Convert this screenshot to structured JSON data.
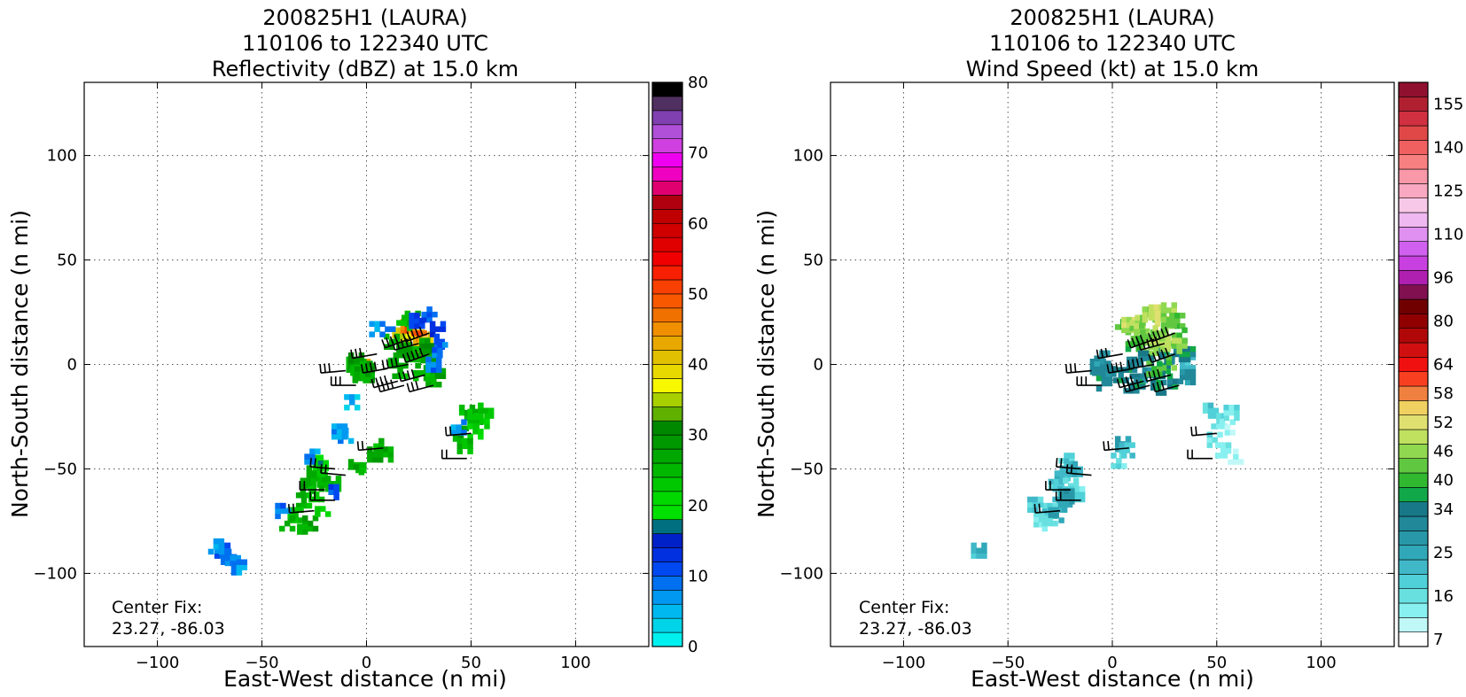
{
  "chart_data": [
    {
      "type": "heatmap",
      "title_lines": [
        "200825H1 (LAURA)",
        "110106 to 122340 UTC",
        "Reflectivity (dBZ) at 15.0 km"
      ],
      "xlabel": "East-West distance (n mi)",
      "ylabel": "North-South distance (n mi)",
      "xlim": [
        -135,
        135
      ],
      "ylim": [
        -135,
        135
      ],
      "xticks": [
        -100,
        -50,
        0,
        50,
        100
      ],
      "yticks": [
        -100,
        -50,
        0,
        50,
        100
      ],
      "xtick_labels": [
        "−100",
        "−50",
        "0",
        "50",
        "100"
      ],
      "ytick_labels": [
        "−100",
        "−50",
        "0",
        "50",
        "100"
      ],
      "grid": true,
      "annotation_lines": [
        "Center Fix:",
        "23.27, -86.03"
      ],
      "colorbar": {
        "min": 0,
        "max": 80,
        "ticks": [
          0,
          10,
          20,
          30,
          40,
          50,
          60,
          70,
          80
        ],
        "tick_labels": [
          "0",
          "10",
          "20",
          "30",
          "40",
          "50",
          "60",
          "70",
          "80"
        ],
        "colors": [
          "#00f0f0",
          "#00d4e8",
          "#00b8f0",
          "#0098f0",
          "#0070f0",
          "#0048f0",
          "#0030e0",
          "#0020c8",
          "#007080",
          "#00e000",
          "#00d800",
          "#00c800",
          "#00b800",
          "#00a800",
          "#009800",
          "#008800",
          "#60b000",
          "#a8d000",
          "#f8f800",
          "#e8d800",
          "#e0c000",
          "#e8a800",
          "#f09000",
          "#f07000",
          "#f85800",
          "#f84000",
          "#f82000",
          "#f00000",
          "#e00000",
          "#d00000",
          "#c00000",
          "#b00010",
          "#e00070",
          "#f000c0",
          "#f000f0",
          "#d040e0",
          "#b050d8",
          "#8040b0",
          "#503060",
          "#000000"
        ]
      },
      "cells": [
        [
          5,
          17,
          2
        ],
        [
          -4,
          -48,
          12
        ],
        [
          -3,
          -1,
          13
        ],
        [
          -2,
          -1,
          20
        ],
        [
          -1,
          -2,
          14
        ],
        [
          0,
          -3,
          13
        ],
        [
          0,
          -5,
          16
        ],
        [
          -2,
          -3,
          14
        ],
        [
          -1,
          -4,
          13
        ],
        [
          -4,
          -1,
          12
        ],
        [
          -6,
          0,
          12
        ],
        [
          -3,
          -5,
          13
        ],
        [
          -5,
          2,
          14
        ],
        [
          -4,
          -4,
          12
        ],
        [
          -2,
          -2,
          13
        ],
        [
          14,
          2,
          12
        ],
        [
          16,
          14,
          20
        ],
        [
          20,
          18,
          22
        ],
        [
          22,
          16,
          24
        ],
        [
          24,
          13,
          20
        ],
        [
          20,
          11,
          18
        ],
        [
          26,
          8,
          20
        ],
        [
          25,
          15,
          24
        ],
        [
          28,
          12,
          20
        ],
        [
          30,
          5,
          14
        ],
        [
          27,
          2,
          13
        ],
        [
          22,
          5,
          12
        ],
        [
          18,
          7,
          14
        ],
        [
          12,
          11,
          13
        ],
        [
          16,
          -3,
          12
        ],
        [
          26,
          -4,
          12
        ],
        [
          32,
          -7,
          12
        ],
        [
          34,
          -3,
          13
        ],
        [
          29,
          9,
          14
        ],
        [
          22,
          22,
          13
        ],
        [
          18,
          20,
          12
        ],
        [
          10,
          17,
          4
        ],
        [
          24,
          21,
          5
        ],
        [
          30,
          24,
          5
        ],
        [
          34,
          17,
          6
        ],
        [
          36,
          11,
          5
        ],
        [
          35,
          7,
          4
        ],
        [
          32,
          0,
          4
        ],
        [
          48,
          -23,
          12
        ],
        [
          50,
          -28,
          12
        ],
        [
          52,
          -25,
          12
        ],
        [
          45,
          -33,
          13
        ],
        [
          55,
          -27,
          11
        ],
        [
          57,
          -22,
          12
        ],
        [
          52,
          -32,
          10
        ],
        [
          47,
          -39,
          12
        ],
        [
          44,
          -30,
          3
        ],
        [
          7,
          -39,
          12
        ],
        [
          9,
          -43,
          13
        ],
        [
          4,
          -43,
          13
        ],
        [
          -5,
          -49,
          13
        ],
        [
          -22,
          -47,
          9
        ],
        [
          -25,
          -52,
          12
        ],
        [
          -20,
          -55,
          12
        ],
        [
          -28,
          -58,
          13
        ],
        [
          -24,
          -62,
          12
        ],
        [
          -30,
          -65,
          12
        ],
        [
          -34,
          -72,
          12
        ],
        [
          -27,
          -76,
          13
        ],
        [
          -38,
          -76,
          12
        ],
        [
          -32,
          -80,
          13
        ],
        [
          -16,
          -57,
          12
        ],
        [
          -21,
          -69,
          11
        ],
        [
          -66,
          -92,
          4
        ],
        [
          -69,
          -89,
          4
        ],
        [
          -64,
          -95,
          3
        ],
        [
          -72,
          -87,
          3
        ],
        [
          -61,
          -97,
          3
        ],
        [
          -10,
          -34,
          3
        ],
        [
          -26,
          -44,
          3
        ],
        [
          -40,
          -70,
          4
        ],
        [
          -17,
          -61,
          5
        ],
        [
          -7,
          -18,
          2
        ],
        [
          -13,
          -32,
          3
        ]
      ],
      "barbs": [
        [
          -10,
          -3,
          265,
          30
        ],
        [
          -5,
          -10,
          270,
          30
        ],
        [
          5,
          5,
          260,
          30
        ],
        [
          10,
          -2,
          260,
          35
        ],
        [
          15,
          -8,
          255,
          35
        ],
        [
          20,
          0,
          260,
          40
        ],
        [
          25,
          10,
          255,
          45
        ],
        [
          30,
          15,
          250,
          45
        ],
        [
          20,
          12,
          250,
          40
        ],
        [
          28,
          -5,
          255,
          35
        ],
        [
          -15,
          -50,
          275,
          20
        ],
        [
          -10,
          -53,
          275,
          20
        ],
        [
          -20,
          -60,
          270,
          20
        ],
        [
          -15,
          -65,
          270,
          20
        ],
        [
          -25,
          -70,
          265,
          20
        ],
        [
          50,
          -33,
          265,
          15
        ],
        [
          48,
          -45,
          270,
          15
        ],
        [
          8,
          -40,
          265,
          15
        ],
        [
          30,
          5,
          250,
          45
        ],
        [
          18,
          -10,
          255,
          35
        ],
        [
          32,
          -10,
          255,
          30
        ]
      ]
    },
    {
      "type": "heatmap",
      "title_lines": [
        "200825H1 (LAURA)",
        "110106 to 122340 UTC",
        "Wind Speed (kt) at 15.0 km"
      ],
      "xlabel": "East-West distance (n mi)",
      "ylabel": "North-South distance (n mi)",
      "xlim": [
        -135,
        135
      ],
      "ylim": [
        -135,
        135
      ],
      "xticks": [
        -100,
        -50,
        0,
        50,
        100
      ],
      "yticks": [
        -100,
        -50,
        0,
        50,
        100
      ],
      "xtick_labels": [
        "−100",
        "−50",
        "0",
        "50",
        "100"
      ],
      "ytick_labels": [
        "−100",
        "−50",
        "0",
        "50",
        "100"
      ],
      "grid": true,
      "annotation_lines": [
        "Center Fix:",
        "23.27, -86.03"
      ],
      "colorbar": {
        "ticks": [
          7,
          16,
          25,
          34,
          40,
          46,
          52,
          58,
          64,
          80,
          96,
          110,
          125,
          140,
          155
        ],
        "tick_labels": [
          "7",
          "16",
          "25",
          "34",
          "40",
          "46",
          "52",
          "58",
          "64",
          "80",
          "96",
          "110",
          "125",
          "140",
          "155"
        ],
        "tick_slots": [
          0,
          3,
          6,
          9,
          11,
          13,
          15,
          17,
          19,
          22,
          25,
          28,
          31,
          34,
          37
        ],
        "colors": [
          "#ffffff",
          "#c0f8f8",
          "#88f0f0",
          "#68e0e0",
          "#50d0d8",
          "#40b8c8",
          "#30a8b8",
          "#2898a8",
          "#208898",
          "#187888",
          "#10a848",
          "#30b830",
          "#60c840",
          "#90d850",
          "#c0e060",
          "#e0e070",
          "#f0d060",
          "#f08040",
          "#f84020",
          "#f01010",
          "#d01010",
          "#b00808",
          "#900000",
          "#700000",
          "#801050",
          "#b020b0",
          "#c840e0",
          "#d060f0",
          "#e090f0",
          "#f0b8f0",
          "#f8c8e8",
          "#f8a8c0",
          "#f898a8",
          "#f88080",
          "#f06060",
          "#e04848",
          "#d03040",
          "#b02030",
          "#901030"
        ]
      },
      "cells": [
        [
          5,
          18,
          12
        ],
        [
          8,
          19,
          14
        ],
        [
          12,
          20,
          13
        ],
        [
          14,
          16,
          13
        ],
        [
          17,
          13,
          12
        ],
        [
          18,
          24,
          13
        ],
        [
          21,
          25,
          14
        ],
        [
          24,
          22,
          15
        ],
        [
          27,
          26,
          13
        ],
        [
          31,
          21,
          12
        ],
        [
          32,
          14,
          11
        ],
        [
          26,
          10,
          12
        ],
        [
          23,
          15,
          13
        ],
        [
          21,
          8,
          13
        ],
        [
          16,
          6,
          12
        ],
        [
          10,
          10,
          11
        ],
        [
          8,
          0,
          9
        ],
        [
          16,
          3,
          9
        ],
        [
          24,
          -3,
          9
        ],
        [
          30,
          -8,
          9
        ],
        [
          12,
          -8,
          9
        ],
        [
          18,
          -5,
          8
        ],
        [
          26,
          4,
          9
        ],
        [
          33,
          5,
          8
        ],
        [
          36,
          1,
          5
        ],
        [
          36,
          5,
          9
        ],
        [
          4,
          -5,
          9
        ],
        [
          9,
          -10,
          8
        ],
        [
          22,
          -11,
          9
        ],
        [
          36,
          -6,
          7
        ],
        [
          27,
          1,
          12
        ],
        [
          -7,
          -1,
          8
        ],
        [
          -6,
          -4,
          8
        ],
        [
          -5,
          3,
          7
        ],
        [
          -4,
          -9,
          9
        ],
        [
          -2,
          -2,
          8
        ],
        [
          47,
          -22,
          4
        ],
        [
          51,
          -27,
          3
        ],
        [
          55,
          -30,
          2
        ],
        [
          49,
          -36,
          3
        ],
        [
          53,
          -41,
          2
        ],
        [
          57,
          -23,
          3
        ],
        [
          59,
          -44,
          1
        ],
        [
          -22,
          -46,
          4
        ],
        [
          -24,
          -52,
          5
        ],
        [
          -18,
          -50,
          6
        ],
        [
          -27,
          -56,
          4
        ],
        [
          -20,
          -58,
          3
        ],
        [
          -25,
          -62,
          4
        ],
        [
          -23,
          -67,
          6
        ],
        [
          -30,
          -70,
          4
        ],
        [
          -34,
          -74,
          3
        ],
        [
          -37,
          -67,
          4
        ],
        [
          -17,
          -62,
          3
        ],
        [
          -30,
          -76,
          3
        ],
        [
          5,
          -38,
          6
        ],
        [
          7,
          -41,
          4
        ],
        [
          3,
          -46,
          3
        ],
        [
          -22,
          -63,
          7
        ],
        [
          -27,
          -72,
          6
        ],
        [
          20,
          -2,
          11
        ],
        [
          24,
          10,
          14
        ],
        [
          27,
          19,
          12
        ],
        [
          32,
          9,
          13
        ],
        [
          -64,
          -89,
          5
        ]
      ],
      "barbs": [
        [
          -10,
          -3,
          265,
          30
        ],
        [
          -5,
          -10,
          270,
          30
        ],
        [
          5,
          5,
          260,
          30
        ],
        [
          10,
          -2,
          260,
          35
        ],
        [
          15,
          -8,
          255,
          35
        ],
        [
          20,
          0,
          260,
          40
        ],
        [
          25,
          10,
          255,
          45
        ],
        [
          30,
          15,
          250,
          45
        ],
        [
          20,
          12,
          250,
          40
        ],
        [
          28,
          -5,
          255,
          35
        ],
        [
          -15,
          -50,
          275,
          20
        ],
        [
          -10,
          -53,
          275,
          20
        ],
        [
          -20,
          -60,
          270,
          20
        ],
        [
          -15,
          -65,
          270,
          20
        ],
        [
          -25,
          -70,
          265,
          20
        ],
        [
          50,
          -33,
          265,
          15
        ],
        [
          48,
          -45,
          270,
          15
        ],
        [
          8,
          -40,
          265,
          15
        ],
        [
          30,
          5,
          250,
          45
        ],
        [
          18,
          -10,
          255,
          35
        ],
        [
          32,
          -10,
          255,
          30
        ]
      ]
    }
  ]
}
